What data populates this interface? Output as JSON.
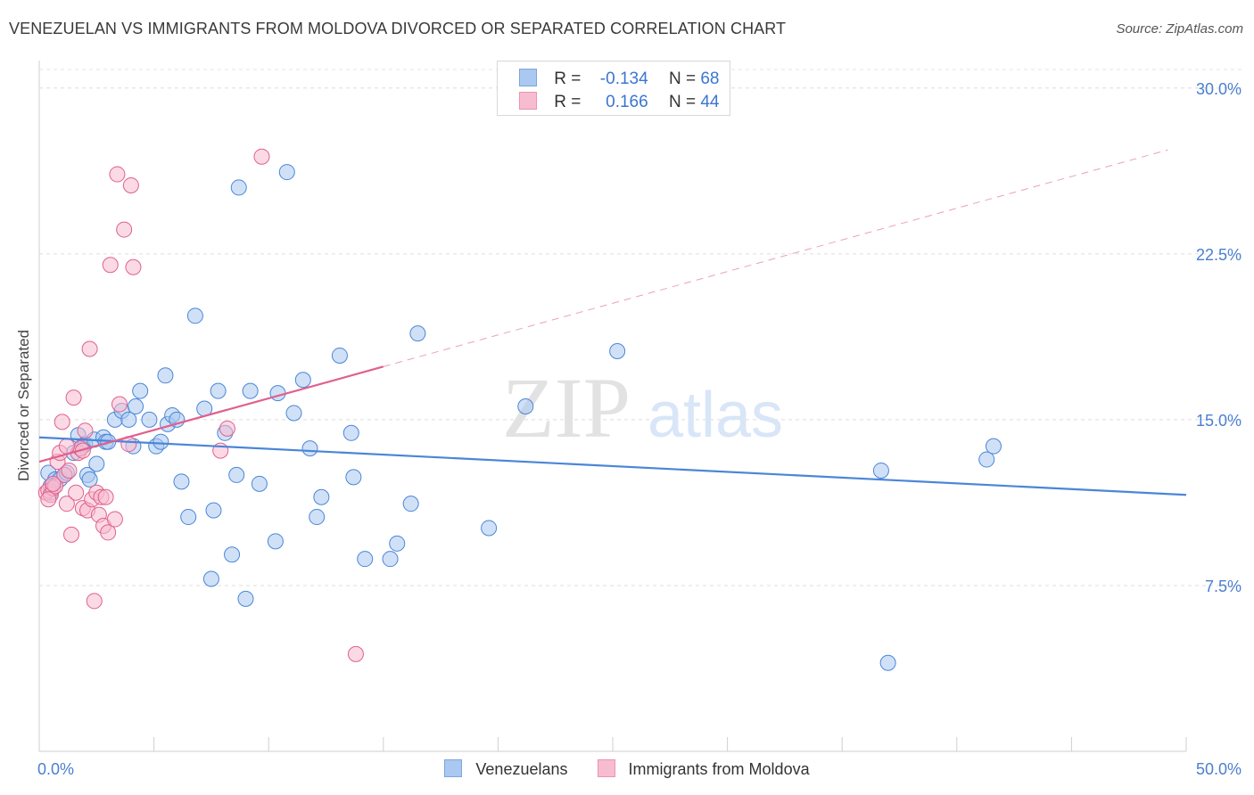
{
  "title": "VENEZUELAN VS IMMIGRANTS FROM MOLDOVA DIVORCED OR SEPARATED CORRELATION CHART",
  "source": "Source: ZipAtlas.com",
  "watermark": {
    "zip": "ZIP",
    "atlas": "atlas"
  },
  "legend": {
    "rows": [
      {
        "r_label": "R =",
        "r_value": "-0.134",
        "n_label": "N =",
        "n_value": "68",
        "color": "#aac8f0"
      },
      {
        "r_label": "R =",
        "r_value": "0.166",
        "n_label": "N =",
        "n_value": "44",
        "color": "#f7bcd0"
      }
    ]
  },
  "bottom_legend": [
    {
      "label": "Venezuelans",
      "color": "#aac8f0"
    },
    {
      "label": "Immigrants from Moldova",
      "color": "#f7bcd0"
    }
  ],
  "chart_data": {
    "type": "scatter",
    "ylabel": "Divorced or Separated",
    "xlim": [
      0,
      50
    ],
    "ylim": [
      0,
      31
    ],
    "x_tick_labels": [
      "0.0%",
      "50.0%"
    ],
    "y_ticks": [
      7.5,
      15.0,
      22.5,
      30.0
    ],
    "y_tick_labels": [
      "7.5%",
      "15.0%",
      "22.5%",
      "30.0%"
    ],
    "grid": "horizontal-dashed",
    "series": [
      {
        "name": "Venezuelans",
        "color": "#4a86d8",
        "fill": "#aac8f0",
        "trend": {
          "x0": 0,
          "y0": 14.2,
          "x1": 50,
          "y1": 11.6,
          "dash_after": null
        },
        "points": [
          [
            0.4,
            12.6
          ],
          [
            0.7,
            12.3
          ],
          [
            0.9,
            12.3
          ],
          [
            0.5,
            12.0
          ],
          [
            0.5,
            11.7
          ],
          [
            1.1,
            12.5
          ],
          [
            1.2,
            12.6
          ],
          [
            1.7,
            14.3
          ],
          [
            1.9,
            13.8
          ],
          [
            2.0,
            13.9
          ],
          [
            2.1,
            12.5
          ],
          [
            2.2,
            12.3
          ],
          [
            2.4,
            14.1
          ],
          [
            2.8,
            14.2
          ],
          [
            2.9,
            14.0
          ],
          [
            3.0,
            14.0
          ],
          [
            3.3,
            15.0
          ],
          [
            3.6,
            15.4
          ],
          [
            3.9,
            15.0
          ],
          [
            4.1,
            13.8
          ],
          [
            4.2,
            15.6
          ],
          [
            4.4,
            16.3
          ],
          [
            4.8,
            15.0
          ],
          [
            5.1,
            13.8
          ],
          [
            5.3,
            14.0
          ],
          [
            5.5,
            17.0
          ],
          [
            5.6,
            14.8
          ],
          [
            5.8,
            15.2
          ],
          [
            6.0,
            15.0
          ],
          [
            6.2,
            12.2
          ],
          [
            6.5,
            10.6
          ],
          [
            6.8,
            19.7
          ],
          [
            7.2,
            15.5
          ],
          [
            7.6,
            10.9
          ],
          [
            7.5,
            7.8
          ],
          [
            7.8,
            16.3
          ],
          [
            8.1,
            14.4
          ],
          [
            8.4,
            8.9
          ],
          [
            8.6,
            12.5
          ],
          [
            8.7,
            25.5
          ],
          [
            9.0,
            6.9
          ],
          [
            9.2,
            16.3
          ],
          [
            9.6,
            12.1
          ],
          [
            10.3,
            9.5
          ],
          [
            10.4,
            16.2
          ],
          [
            10.8,
            26.2
          ],
          [
            11.1,
            15.3
          ],
          [
            11.5,
            16.8
          ],
          [
            11.8,
            13.7
          ],
          [
            12.1,
            10.6
          ],
          [
            12.3,
            11.5
          ],
          [
            13.1,
            17.9
          ],
          [
            13.6,
            14.4
          ],
          [
            13.7,
            12.4
          ],
          [
            14.2,
            8.7
          ],
          [
            15.3,
            8.7
          ],
          [
            15.6,
            9.4
          ],
          [
            16.2,
            11.2
          ],
          [
            16.5,
            18.9
          ],
          [
            19.6,
            10.1
          ],
          [
            21.2,
            15.6
          ],
          [
            25.2,
            18.1
          ],
          [
            36.7,
            12.7
          ],
          [
            37.0,
            4.0
          ],
          [
            41.3,
            13.2
          ],
          [
            41.6,
            13.8
          ],
          [
            2.5,
            13.0
          ],
          [
            1.5,
            13.5
          ]
        ]
      },
      {
        "name": "Immigrants from Moldova",
        "color": "#e0608d",
        "fill": "#f7bcd0",
        "trend": {
          "x0": 0,
          "y0": 13.1,
          "x1": 15.0,
          "y1": 17.4,
          "dash_after": 35.0
        },
        "points": [
          [
            0.3,
            11.7
          ],
          [
            0.4,
            11.8
          ],
          [
            0.5,
            11.6
          ],
          [
            0.6,
            11.9
          ],
          [
            0.7,
            12.0
          ],
          [
            0.8,
            13.1
          ],
          [
            0.9,
            13.5
          ],
          [
            1.0,
            14.9
          ],
          [
            1.1,
            12.5
          ],
          [
            1.2,
            11.2
          ],
          [
            1.3,
            12.7
          ],
          [
            1.4,
            9.8
          ],
          [
            1.5,
            16.0
          ],
          [
            1.6,
            11.7
          ],
          [
            1.7,
            13.5
          ],
          [
            1.8,
            13.7
          ],
          [
            1.9,
            11.0
          ],
          [
            2.0,
            14.5
          ],
          [
            2.1,
            10.9
          ],
          [
            2.2,
            18.2
          ],
          [
            2.3,
            11.4
          ],
          [
            2.5,
            11.7
          ],
          [
            2.6,
            10.7
          ],
          [
            2.7,
            11.5
          ],
          [
            2.8,
            10.2
          ],
          [
            2.9,
            11.5
          ],
          [
            3.0,
            9.9
          ],
          [
            3.1,
            22.0
          ],
          [
            3.3,
            10.5
          ],
          [
            3.4,
            26.1
          ],
          [
            3.5,
            15.7
          ],
          [
            3.7,
            23.6
          ],
          [
            3.9,
            13.9
          ],
          [
            4.0,
            25.6
          ],
          [
            4.1,
            21.9
          ],
          [
            7.9,
            13.6
          ],
          [
            8.2,
            14.6
          ],
          [
            9.7,
            26.9
          ],
          [
            13.8,
            4.4
          ],
          [
            2.4,
            6.8
          ],
          [
            1.9,
            13.6
          ],
          [
            0.6,
            12.1
          ],
          [
            0.4,
            11.4
          ],
          [
            1.2,
            13.8
          ]
        ]
      }
    ]
  }
}
